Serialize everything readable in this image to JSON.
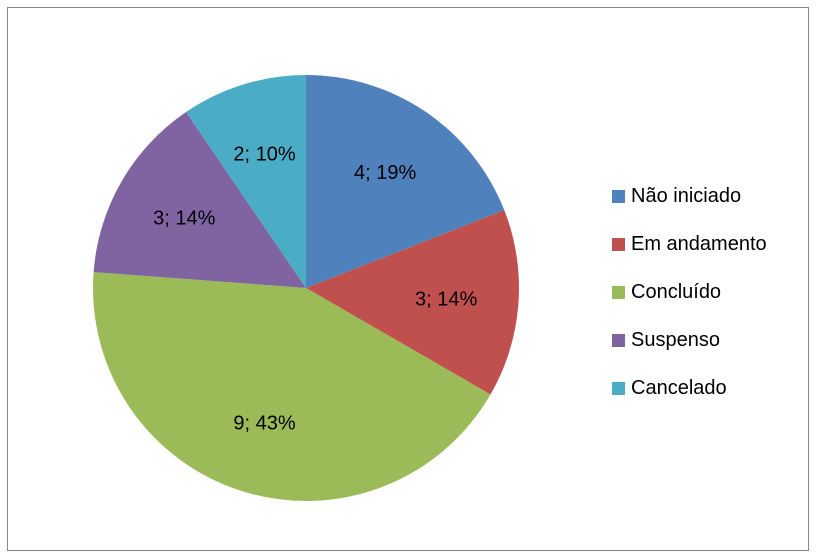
{
  "chart_data": {
    "type": "pie",
    "title": "",
    "start_angle_deg": 0,
    "direction": "clockwise",
    "legend_position": "right",
    "slices": [
      {
        "name": "Não iniciado",
        "value": 4,
        "percent": 19,
        "label": "4; 19%",
        "color": "#4F81BD"
      },
      {
        "name": "Em andamento",
        "value": 3,
        "percent": 14,
        "label": "3; 14%",
        "color": "#C0504D"
      },
      {
        "name": "Concluído",
        "value": 9,
        "percent": 43,
        "label": "9; 43%",
        "color": "#9BBB59"
      },
      {
        "name": "Suspenso",
        "value": 3,
        "percent": 14,
        "label": "3; 14%",
        "color": "#8064A2"
      },
      {
        "name": "Cancelado",
        "value": 2,
        "percent": 10,
        "label": "2; 10%",
        "color": "#4BACC6"
      }
    ]
  }
}
